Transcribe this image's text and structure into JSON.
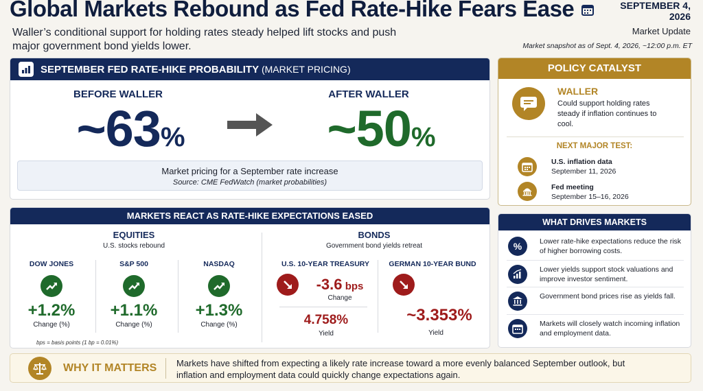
{
  "header": {
    "title": "Global Markets Rebound as Fed Rate-Hike Fears Ease",
    "subtitle": "Waller’s conditional support for holding rates steady helped lift stocks and push major government bond yields lower.",
    "date": "SEPTEMBER 4, 2026",
    "date_sub": "Market Update",
    "snapshot": "Market snapshot as of Sept. 4, 2026, ~12:00 p.m. ET"
  },
  "fed": {
    "title": "SEPTEMBER FED RATE-HIKE PROBABILITY",
    "title_suffix": " (MARKET PRICING)",
    "before_label": "BEFORE WALLER",
    "before_value": "~63",
    "after_label": "AFTER WALLER",
    "after_value": "~50",
    "pct": "%",
    "note": "Market pricing for a September rate increase",
    "source": "Source: CME FedWatch (market probabilities)"
  },
  "markets": {
    "title": "MARKETS REACT AS RATE-HIKE EXPECTATIONS EASED",
    "equities_title": "EQUITIES",
    "equities_sub": "U.S. stocks rebound",
    "bonds_title": "BONDS",
    "bonds_sub": "Government bond yields retreat",
    "dow": {
      "name": "DOW JONES",
      "value": "+1.2%",
      "label": "Change (%)"
    },
    "sp": {
      "name": "S&P 500",
      "value": "+1.1%",
      "label": "Change (%)"
    },
    "nasdaq": {
      "name": "NASDAQ",
      "value": "+1.3%",
      "label": "Change (%)"
    },
    "us10": {
      "name": "U.S. 10-YEAR TREASURY",
      "change": "-3.6",
      "change_unit": " bps",
      "change_label": "Change",
      "yield": "4.758%",
      "yield_label": "Yield"
    },
    "de10": {
      "name": "GERMAN 10-YEAR BUND",
      "yield": "~3.353%",
      "yield_label": "Yield"
    },
    "bps_note": "bps = basis points (1 bp = 0.01%)"
  },
  "policy": {
    "title": "POLICY CATALYST",
    "name": "WALLER",
    "text": "Could support holding rates steady if inflation continues to cool.",
    "next_test": "NEXT MAJOR TEST:",
    "event1_title": "U.S. inflation data",
    "event1_date": "September 11, 2026",
    "event2_title": "Fed meeting",
    "event2_date": "September 15–16, 2026"
  },
  "drives": {
    "title": "WHAT DRIVES MARKETS",
    "items": [
      "Lower rate-hike expectations reduce the risk of higher borrowing costs.",
      "Lower yields support stock valuations and improve investor sentiment.",
      "Government bond prices rise as yields fall.",
      "Markets will closely watch incoming inflation and employment data."
    ]
  },
  "why": {
    "title": "WHY IT MATTERS",
    "text": "Markets have shifted from expecting a likely rate increase toward a more evenly balanced September outlook, but inflation and employment data could quickly change expectations again."
  },
  "colors": {
    "navy": "#14295a",
    "gold": "#b28526",
    "green": "#1f6a2b",
    "red": "#9e1b1b"
  }
}
